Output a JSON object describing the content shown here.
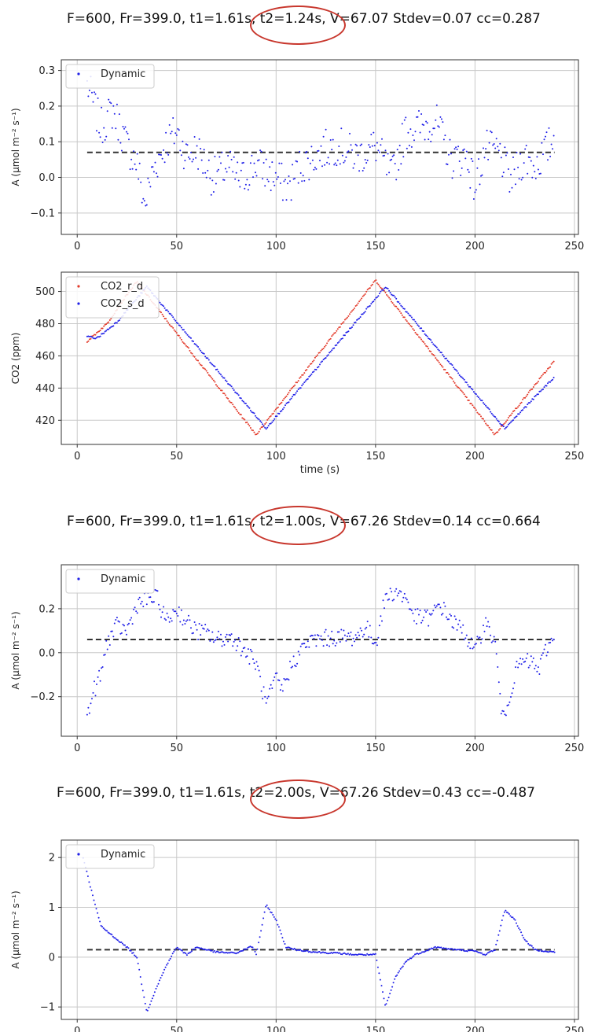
{
  "colors": {
    "blue": "#1f1fe8",
    "red": "#e33a2a",
    "baseline": "#333333",
    "grid": "#c8c8c8",
    "highlight": "#c8372d"
  },
  "titles": [
    "F=600, Fr=399.0, t1=1.61s, t2=1.24s, V=67.07 Stdev=0.07 cc=0.287",
    "F=600, Fr=399.0, t1=1.61s, t2=1.00s, V=67.26 Stdev=0.14 cc=0.664",
    "F=600, Fr=399.0, t1=1.61s, t2=2.00s, V=67.26 Stdev=0.43 cc=-0.487"
  ],
  "chart_data": [
    {
      "type": "scatter",
      "ylabel": "A (μmol m⁻² s⁻¹)",
      "xlabel": "",
      "xlim": [
        -8,
        252
      ],
      "ylim": [
        -0.16,
        0.33
      ],
      "xticks": [
        0,
        50,
        100,
        150,
        200,
        250
      ],
      "yticks": [
        -0.1,
        0.0,
        0.1,
        0.2,
        0.3
      ],
      "ytick_labels": [
        "−0.1",
        "0.0",
        "0.1",
        "0.2",
        "0.3"
      ],
      "grid": true,
      "legend": "top-left",
      "series": [
        {
          "name": "Dynamic",
          "x_start": 5,
          "x_end": 240,
          "noise": 0.055,
          "trend": [
            [
              5,
              0.26
            ],
            [
              12,
              0.14
            ],
            [
              18,
              0.19
            ],
            [
              25,
              0.09
            ],
            [
              30,
              0.04
            ],
            [
              34,
              -0.08
            ],
            [
              38,
              0.02
            ],
            [
              45,
              0.1
            ],
            [
              50,
              0.13
            ],
            [
              55,
              0.06
            ],
            [
              60,
              0.08
            ],
            [
              68,
              0.0
            ],
            [
              76,
              0.03
            ],
            [
              82,
              -0.01
            ],
            [
              90,
              0.04
            ],
            [
              96,
              0.01
            ],
            [
              100,
              0.0
            ],
            [
              106,
              -0.03
            ],
            [
              112,
              0.03
            ],
            [
              120,
              0.06
            ],
            [
              125,
              0.08
            ],
            [
              131,
              0.09
            ],
            [
              140,
              0.06
            ],
            [
              145,
              0.07
            ],
            [
              150,
              0.09
            ],
            [
              158,
              0.0
            ],
            [
              165,
              0.13
            ],
            [
              172,
              0.14
            ],
            [
              180,
              0.16
            ],
            [
              188,
              0.05
            ],
            [
              196,
              0.06
            ],
            [
              200,
              -0.03
            ],
            [
              205,
              0.08
            ],
            [
              212,
              0.07
            ],
            [
              218,
              -0.01
            ],
            [
              225,
              0.06
            ],
            [
              230,
              0.03
            ],
            [
              235,
              0.07
            ],
            [
              240,
              0.11
            ]
          ]
        }
      ],
      "baseline": 0.07
    },
    {
      "type": "scatter",
      "ylabel": "CO2 (ppm)",
      "xlabel": "time (s)",
      "xlim": [
        -8,
        252
      ],
      "ylim": [
        405,
        512
      ],
      "xticks": [
        0,
        50,
        100,
        150,
        200,
        250
      ],
      "yticks": [
        420,
        440,
        460,
        480,
        500
      ],
      "ytick_labels": [
        "420",
        "440",
        "460",
        "480",
        "500"
      ],
      "grid": true,
      "legend": "top-left",
      "series": [
        {
          "name": "CO2_r_d",
          "color": "red",
          "x_start": 5,
          "x_end": 240,
          "noise": 0.6,
          "trend": [
            [
              5,
              469
            ],
            [
              15,
              480
            ],
            [
              25,
              498
            ],
            [
              30,
              506
            ],
            [
              60,
              458
            ],
            [
              90,
              411
            ],
            [
              120,
              459
            ],
            [
              150,
              507
            ],
            [
              180,
              459
            ],
            [
              210,
              411
            ],
            [
              240,
              457
            ]
          ]
        },
        {
          "name": "CO2_s_d",
          "color": "blue",
          "x_start": 5,
          "x_end": 240,
          "noise": 0.6,
          "trend": [
            [
              5,
              472
            ],
            [
              10,
              471
            ],
            [
              20,
              481
            ],
            [
              35,
              503
            ],
            [
              65,
              459
            ],
            [
              95,
              415
            ],
            [
              125,
              459
            ],
            [
              155,
              503
            ],
            [
              185,
              459
            ],
            [
              215,
              415
            ],
            [
              240,
              447
            ]
          ]
        }
      ]
    },
    {
      "type": "scatter",
      "ylabel": "A (μmol m⁻² s⁻¹)",
      "xlabel": "",
      "xlim": [
        -8,
        252
      ],
      "ylim": [
        -0.38,
        0.4
      ],
      "xticks": [
        0,
        50,
        100,
        150,
        200,
        250
      ],
      "yticks": [
        -0.2,
        0.0,
        0.2
      ],
      "ytick_labels": [
        "−0.2",
        "0.0",
        "0.2"
      ],
      "grid": true,
      "legend": "top-left",
      "series": [
        {
          "name": "Dynamic",
          "x_start": 5,
          "x_end": 240,
          "noise": 0.04,
          "trend": [
            [
              5,
              -0.3
            ],
            [
              8,
              -0.18
            ],
            [
              12,
              -0.1
            ],
            [
              15,
              0.05
            ],
            [
              20,
              0.12
            ],
            [
              25,
              0.1
            ],
            [
              30,
              0.22
            ],
            [
              35,
              0.24
            ],
            [
              40,
              0.25
            ],
            [
              45,
              0.14
            ],
            [
              50,
              0.2
            ],
            [
              55,
              0.14
            ],
            [
              60,
              0.1
            ],
            [
              65,
              0.09
            ],
            [
              70,
              0.06
            ],
            [
              78,
              0.07
            ],
            [
              85,
              0.0
            ],
            [
              90,
              -0.05
            ],
            [
              95,
              -0.24
            ],
            [
              100,
              -0.12
            ],
            [
              103,
              -0.17
            ],
            [
              108,
              -0.05
            ],
            [
              115,
              0.04
            ],
            [
              120,
              0.06
            ],
            [
              130,
              0.07
            ],
            [
              140,
              0.07
            ],
            [
              145,
              0.12
            ],
            [
              150,
              0.04
            ],
            [
              155,
              0.25
            ],
            [
              160,
              0.28
            ],
            [
              165,
              0.25
            ],
            [
              170,
              0.16
            ],
            [
              178,
              0.16
            ],
            [
              182,
              0.22
            ],
            [
              190,
              0.13
            ],
            [
              195,
              0.09
            ],
            [
              200,
              0.0
            ],
            [
              205,
              0.14
            ],
            [
              210,
              0.05
            ],
            [
              214,
              -0.32
            ],
            [
              217,
              -0.2
            ],
            [
              222,
              -0.05
            ],
            [
              228,
              -0.04
            ],
            [
              232,
              -0.08
            ],
            [
              236,
              0.02
            ],
            [
              240,
              0.07
            ]
          ]
        }
      ],
      "baseline": 0.06
    },
    {
      "type": "line",
      "ylabel": "A (μmol m⁻² s⁻¹)",
      "xlabel": "",
      "xlim": [
        -8,
        252
      ],
      "ylim": [
        -1.25,
        2.35
      ],
      "xticks": [
        0,
        50,
        100,
        150,
        200,
        250
      ],
      "yticks": [
        -1,
        0,
        1,
        2
      ],
      "ytick_labels": [
        "−1",
        "0",
        "1",
        "2"
      ],
      "grid": true,
      "legend": "top-left",
      "series": [
        {
          "name": "Dynamic",
          "x_start": 3,
          "x_end": 240,
          "noise": 0.015,
          "trend": [
            [
              3,
              2.0
            ],
            [
              8,
              1.2
            ],
            [
              12,
              0.62
            ],
            [
              18,
              0.42
            ],
            [
              25,
              0.2
            ],
            [
              30,
              0.0
            ],
            [
              35,
              -1.1
            ],
            [
              40,
              -0.6
            ],
            [
              45,
              -0.15
            ],
            [
              50,
              0.2
            ],
            [
              55,
              0.05
            ],
            [
              60,
              0.2
            ],
            [
              70,
              0.1
            ],
            [
              80,
              0.08
            ],
            [
              88,
              0.22
            ],
            [
              90,
              0.05
            ],
            [
              95,
              1.05
            ],
            [
              100,
              0.75
            ],
            [
              105,
              0.2
            ],
            [
              110,
              0.15
            ],
            [
              120,
              0.1
            ],
            [
              130,
              0.08
            ],
            [
              140,
              0.05
            ],
            [
              150,
              0.05
            ],
            [
              155,
              -1.0
            ],
            [
              160,
              -0.4
            ],
            [
              165,
              -0.1
            ],
            [
              170,
              0.05
            ],
            [
              180,
              0.2
            ],
            [
              190,
              0.15
            ],
            [
              200,
              0.12
            ],
            [
              205,
              0.05
            ],
            [
              210,
              0.15
            ],
            [
              215,
              0.95
            ],
            [
              220,
              0.75
            ],
            [
              225,
              0.35
            ],
            [
              230,
              0.15
            ],
            [
              240,
              0.1
            ]
          ]
        }
      ],
      "baseline": 0.15
    }
  ]
}
